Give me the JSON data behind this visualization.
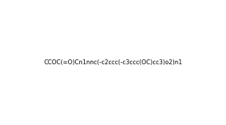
{
  "smiles": "CCOC(=O)Cn1nnc(-c2ccc(-c3ccc(OC)cc3)o2)n1",
  "title": "",
  "bg_color": "#ffffff",
  "fig_width": 3.22,
  "fig_height": 1.79,
  "dpi": 100
}
